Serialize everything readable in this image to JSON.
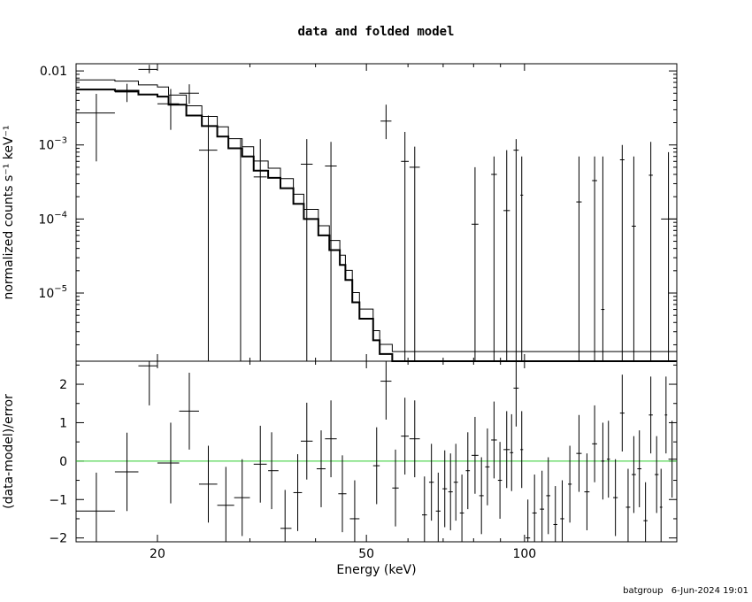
{
  "title": "data and folded model",
  "footer": {
    "user": "batgroup",
    "timestamp": "6-Jun-2024 19:01"
  },
  "chart_data": [
    {
      "type": "scatter",
      "panel": "top",
      "xscale": "log",
      "yscale": "log",
      "xlim": [
        14,
        195
      ],
      "ylim": [
        1.2e-06,
        0.0125
      ],
      "ylabel": "normalized counts s⁻¹ keV⁻¹",
      "y_ticks": [
        {
          "value": 0.01,
          "label": "0.01"
        },
        {
          "value": 0.001,
          "base": "10",
          "exp": "−3"
        },
        {
          "value": 0.0001,
          "base": "10",
          "exp": "−4"
        },
        {
          "value": 1e-05,
          "base": "10",
          "exp": "−5"
        }
      ],
      "data_points": [
        {
          "x": 15.3,
          "x_lo": 14.0,
          "x_hi": 16.6,
          "y": 0.0027,
          "y_lo": 0.0006,
          "y_hi": 0.0049
        },
        {
          "x": 17.5,
          "x_lo": 16.6,
          "x_hi": 18.4,
          "y": 0.0052,
          "y_lo": 0.0038,
          "y_hi": 0.0067
        },
        {
          "x": 19.3,
          "x_lo": 18.4,
          "x_hi": 20.0,
          "y": 0.0105,
          "y_lo": 0.0093,
          "y_hi": 0.0121
        },
        {
          "x": 21.2,
          "x_lo": 20.0,
          "x_hi": 22.0,
          "y": 0.0036,
          "y_lo": 0.0016,
          "y_hi": 0.0057
        },
        {
          "x": 23.0,
          "x_lo": 22.0,
          "x_hi": 24.0,
          "y": 0.005,
          "y_lo": 0.0036,
          "y_hi": 0.0066
        },
        {
          "x": 25.0,
          "x_lo": 24.0,
          "x_hi": 26.0,
          "y": 0.00085,
          "y_lo": 1.2e-06,
          "y_hi": 0.0025
        },
        {
          "x": 28.8,
          "x_lo": 28.0,
          "x_hi": 29.7,
          "y": 1.2e-06,
          "y_lo": 1.2e-06,
          "y_hi": 0.0012
        },
        {
          "x": 31.4,
          "x_lo": 30.5,
          "x_hi": 32.3,
          "y": 0.00037,
          "y_lo": 1.2e-06,
          "y_hi": 0.0012
        },
        {
          "x": 38.5,
          "x_lo": 37.5,
          "x_hi": 39.5,
          "y": 0.00055,
          "y_lo": 1.2e-06,
          "y_hi": 0.0012
        },
        {
          "x": 42.8,
          "x_lo": 41.7,
          "x_hi": 43.9,
          "y": 0.00052,
          "y_lo": 1.2e-06,
          "y_hi": 0.0011
        },
        {
          "x": 54.5,
          "x_lo": 53.2,
          "x_hi": 55.8,
          "y": 0.0021,
          "y_lo": 0.0012,
          "y_hi": 0.0035
        },
        {
          "x": 59.2,
          "x_lo": 58.2,
          "x_hi": 60.2,
          "y": 0.0006,
          "y_lo": 1.2e-06,
          "y_hi": 0.0015
        },
        {
          "x": 61.8,
          "x_lo": 60.4,
          "x_hi": 63.2,
          "y": 0.0005,
          "y_lo": 1.2e-06,
          "y_hi": 0.00095
        },
        {
          "x": 80.5,
          "x_lo": 79.3,
          "x_hi": 81.7,
          "y": 8.5e-05,
          "y_lo": 1.2e-06,
          "y_hi": 0.0005
        },
        {
          "x": 87.5,
          "x_lo": 86.4,
          "x_hi": 88.6,
          "y": 0.0004,
          "y_lo": 1.2e-06,
          "y_hi": 0.0007
        },
        {
          "x": 92.5,
          "x_lo": 91.2,
          "x_hi": 93.8,
          "y": 0.00013,
          "y_lo": 1.2e-06,
          "y_hi": 0.00085
        },
        {
          "x": 96.4,
          "x_lo": 95.3,
          "x_hi": 97.5,
          "y": 0.00085,
          "y_lo": 1.2e-06,
          "y_hi": 0.0012
        },
        {
          "x": 98.8,
          "x_lo": 98.2,
          "x_hi": 99.4,
          "y": 0.00021,
          "y_lo": 1.2e-06,
          "y_hi": 0.0007
        },
        {
          "x": 127.0,
          "x_lo": 125.5,
          "x_hi": 128.5,
          "y": 0.00017,
          "y_lo": 1.2e-06,
          "y_hi": 0.0007
        },
        {
          "x": 136.0,
          "x_lo": 134.5,
          "x_hi": 137.5,
          "y": 0.00033,
          "y_lo": 1.2e-06,
          "y_hi": 0.0007
        },
        {
          "x": 141.0,
          "x_lo": 140.0,
          "x_hi": 142.0,
          "y": 6e-06,
          "y_lo": 1.2e-06,
          "y_hi": 0.0007
        },
        {
          "x": 153.5,
          "x_lo": 152.0,
          "x_hi": 155.0,
          "y": 0.00063,
          "y_lo": 1.2e-06,
          "y_hi": 0.001
        },
        {
          "x": 161.5,
          "x_lo": 160.0,
          "x_hi": 163.0,
          "y": 8e-05,
          "y_lo": 1.2e-06,
          "y_hi": 0.0007
        },
        {
          "x": 174.0,
          "x_lo": 172.5,
          "x_hi": 175.5,
          "y": 0.00039,
          "y_lo": 1.2e-06,
          "y_hi": 0.0011
        },
        {
          "x": 188.0,
          "x_lo": 182.0,
          "x_hi": 195.0,
          "y": 0.0001,
          "y_lo": 1.2e-06,
          "y_hi": 0.0008
        }
      ],
      "model_step": [
        {
          "x0": 14.0,
          "x1": 16.6,
          "y": 0.0056
        },
        {
          "x0": 16.6,
          "x1": 18.4,
          "y": 0.0054
        },
        {
          "x0": 18.4,
          "x1": 20.0,
          "y": 0.0048
        },
        {
          "x0": 20.0,
          "x1": 21.0,
          "y": 0.0045
        },
        {
          "x0": 21.0,
          "x1": 22.7,
          "y": 0.0035
        },
        {
          "x0": 22.7,
          "x1": 24.3,
          "y": 0.0025
        },
        {
          "x0": 24.3,
          "x1": 26.0,
          "y": 0.0018
        },
        {
          "x0": 26.0,
          "x1": 27.3,
          "y": 0.0013
        },
        {
          "x0": 27.3,
          "x1": 29.0,
          "y": 0.0009
        },
        {
          "x0": 29.0,
          "x1": 30.5,
          "y": 0.0007
        },
        {
          "x0": 30.5,
          "x1": 32.5,
          "y": 0.00045
        },
        {
          "x0": 32.5,
          "x1": 34.3,
          "y": 0.00036
        },
        {
          "x0": 34.3,
          "x1": 36.3,
          "y": 0.00026
        },
        {
          "x0": 36.3,
          "x1": 38.0,
          "y": 0.00016
        },
        {
          "x0": 38.0,
          "x1": 40.5,
          "y": 0.0001
        },
        {
          "x0": 40.5,
          "x1": 42.5,
          "y": 6e-05
        },
        {
          "x0": 42.5,
          "x1": 44.5,
          "y": 3.8e-05
        },
        {
          "x0": 44.5,
          "x1": 45.6,
          "y": 2.4e-05
        },
        {
          "x0": 45.6,
          "x1": 47.0,
          "y": 1.5e-05
        },
        {
          "x0": 47.0,
          "x1": 48.5,
          "y": 7.5e-06
        },
        {
          "x0": 48.5,
          "x1": 51.5,
          "y": 4.5e-06
        },
        {
          "x0": 51.5,
          "x1": 53.0,
          "y": 2.3e-06
        },
        {
          "x0": 53.0,
          "x1": 56.0,
          "y": 1.5e-06
        },
        {
          "x0": 56.0,
          "x1": 195.0,
          "y": 1.2e-06
        }
      ]
    },
    {
      "type": "scatter",
      "panel": "bottom",
      "xscale": "log",
      "xlim": [
        14,
        195
      ],
      "ylim": [
        -2.1,
        2.6
      ],
      "xlabel": "Energy (keV)",
      "ylabel": "(data-model)/error",
      "x_ticks": [
        {
          "value": 20,
          "label": "20"
        },
        {
          "value": 50,
          "label": "50"
        },
        {
          "value": 100,
          "label": "100"
        }
      ],
      "y_ticks": [
        {
          "value": 2,
          "label": "2"
        },
        {
          "value": 1,
          "label": "1"
        },
        {
          "value": 0,
          "label": "0"
        },
        {
          "value": -1,
          "label": "−1"
        },
        {
          "value": -2,
          "label": "−2"
        }
      ],
      "reference_line": {
        "y": 0,
        "color": "#2ecc2e"
      },
      "residuals": [
        {
          "x": 15.3,
          "x_lo": 14.0,
          "x_hi": 16.6,
          "y": -1.3,
          "y_lo": -2.3,
          "y_hi": -0.3
        },
        {
          "x": 17.5,
          "x_lo": 16.6,
          "x_hi": 18.4,
          "y": -0.28,
          "y_lo": -1.3,
          "y_hi": 0.74
        },
        {
          "x": 19.3,
          "x_lo": 18.4,
          "x_hi": 20.0,
          "y": 2.48,
          "y_lo": 1.45,
          "y_hi": 3.5
        },
        {
          "x": 21.2,
          "x_lo": 20.0,
          "x_hi": 22.0,
          "y": -0.05,
          "y_lo": -1.1,
          "y_hi": 1.0
        },
        {
          "x": 23.0,
          "x_lo": 22.0,
          "x_hi": 24.0,
          "y": 1.3,
          "y_lo": 0.3,
          "y_hi": 2.3
        },
        {
          "x": 25.0,
          "x_lo": 24.0,
          "x_hi": 26.0,
          "y": -0.6,
          "y_lo": -1.6,
          "y_hi": 0.4
        },
        {
          "x": 27.0,
          "x_lo": 26.0,
          "x_hi": 28.0,
          "y": -1.15,
          "y_lo": -2.15,
          "y_hi": -0.15
        },
        {
          "x": 29.0,
          "x_lo": 28.0,
          "x_hi": 30.0,
          "y": -0.95,
          "y_lo": -1.95,
          "y_hi": 0.05
        },
        {
          "x": 31.4,
          "x_lo": 30.5,
          "x_hi": 32.3,
          "y": -0.08,
          "y_lo": -1.08,
          "y_hi": 0.92
        },
        {
          "x": 33.0,
          "x_lo": 32.5,
          "x_hi": 34.0,
          "y": -0.25,
          "y_lo": -1.25,
          "y_hi": 0.75
        },
        {
          "x": 35.0,
          "x_lo": 34.3,
          "x_hi": 36.0,
          "y": -1.75,
          "y_lo": -2.2,
          "y_hi": -0.75
        },
        {
          "x": 37.0,
          "x_lo": 36.3,
          "x_hi": 37.7,
          "y": -0.82,
          "y_lo": -1.82,
          "y_hi": 0.18
        },
        {
          "x": 38.5,
          "x_lo": 37.5,
          "x_hi": 39.5,
          "y": 0.52,
          "y_lo": -0.48,
          "y_hi": 1.52
        },
        {
          "x": 41.0,
          "x_lo": 40.2,
          "x_hi": 41.8,
          "y": -0.2,
          "y_lo": -1.2,
          "y_hi": 0.8
        },
        {
          "x": 42.8,
          "x_lo": 41.7,
          "x_hi": 43.9,
          "y": 0.58,
          "y_lo": -0.42,
          "y_hi": 1.58
        },
        {
          "x": 45.0,
          "x_lo": 44.2,
          "x_hi": 45.8,
          "y": -0.85,
          "y_lo": -1.85,
          "y_hi": 0.15
        },
        {
          "x": 47.5,
          "x_lo": 46.5,
          "x_hi": 48.5,
          "y": -1.5,
          "y_lo": -2.2,
          "y_hi": -0.5
        },
        {
          "x": 52.3,
          "x_lo": 51.5,
          "x_hi": 53.0,
          "y": -0.12,
          "y_lo": -1.12,
          "y_hi": 0.88
        },
        {
          "x": 54.5,
          "x_lo": 53.2,
          "x_hi": 55.8,
          "y": 2.08,
          "y_lo": 1.08,
          "y_hi": 3.08
        },
        {
          "x": 56.8,
          "x_lo": 56.0,
          "x_hi": 57.6,
          "y": -0.7,
          "y_lo": -1.7,
          "y_hi": 0.3
        },
        {
          "x": 59.2,
          "x_lo": 58.2,
          "x_hi": 60.2,
          "y": 0.65,
          "y_lo": -0.35,
          "y_hi": 1.65
        },
        {
          "x": 61.8,
          "x_lo": 60.4,
          "x_hi": 63.2,
          "y": 0.58,
          "y_lo": -0.42,
          "y_hi": 1.58
        },
        {
          "x": 64.5,
          "x_lo": 63.8,
          "x_hi": 65.2,
          "y": -1.4,
          "y_lo": -2.2,
          "y_hi": -0.4
        },
        {
          "x": 66.5,
          "x_lo": 65.8,
          "x_hi": 67.2,
          "y": -0.55,
          "y_lo": -1.55,
          "y_hi": 0.45
        },
        {
          "x": 68.5,
          "x_lo": 67.8,
          "x_hi": 69.2,
          "y": -1.3,
          "y_lo": -2.2,
          "y_hi": -0.3
        },
        {
          "x": 70.5,
          "x_lo": 69.8,
          "x_hi": 71.2,
          "y": -0.72,
          "y_lo": -1.72,
          "y_hi": 0.28
        },
        {
          "x": 72.3,
          "x_lo": 71.6,
          "x_hi": 73.0,
          "y": -0.8,
          "y_lo": -1.8,
          "y_hi": 0.2
        },
        {
          "x": 74.0,
          "x_lo": 73.3,
          "x_hi": 74.7,
          "y": -0.55,
          "y_lo": -1.55,
          "y_hi": 0.45
        },
        {
          "x": 76.0,
          "x_lo": 75.3,
          "x_hi": 76.7,
          "y": -1.35,
          "y_lo": -2.2,
          "y_hi": -0.35
        },
        {
          "x": 78.0,
          "x_lo": 77.3,
          "x_hi": 78.7,
          "y": -0.25,
          "y_lo": -1.25,
          "y_hi": 0.75
        },
        {
          "x": 80.5,
          "x_lo": 79.3,
          "x_hi": 81.7,
          "y": 0.15,
          "y_lo": -0.85,
          "y_hi": 1.15
        },
        {
          "x": 82.8,
          "x_lo": 82.0,
          "x_hi": 83.6,
          "y": -0.9,
          "y_lo": -1.9,
          "y_hi": 0.1
        },
        {
          "x": 85.0,
          "x_lo": 84.2,
          "x_hi": 85.8,
          "y": -0.15,
          "y_lo": -1.15,
          "y_hi": 0.85
        },
        {
          "x": 87.5,
          "x_lo": 86.4,
          "x_hi": 88.6,
          "y": 0.55,
          "y_lo": -0.45,
          "y_hi": 1.55
        },
        {
          "x": 89.8,
          "x_lo": 89.0,
          "x_hi": 90.6,
          "y": -0.5,
          "y_lo": -1.5,
          "y_hi": 0.5
        },
        {
          "x": 92.5,
          "x_lo": 91.2,
          "x_hi": 93.8,
          "y": 0.3,
          "y_lo": -0.7,
          "y_hi": 1.3
        },
        {
          "x": 94.5,
          "x_lo": 93.8,
          "x_hi": 95.2,
          "y": 0.22,
          "y_lo": -0.78,
          "y_hi": 1.22
        },
        {
          "x": 96.4,
          "x_lo": 95.3,
          "x_hi": 97.5,
          "y": 1.9,
          "y_lo": 0.9,
          "y_hi": 2.9
        },
        {
          "x": 98.8,
          "x_lo": 98.2,
          "x_hi": 99.4,
          "y": 0.3,
          "y_lo": -0.7,
          "y_hi": 1.3
        },
        {
          "x": 101.5,
          "x_lo": 100.5,
          "x_hi": 102.5,
          "y": -2.0,
          "y_lo": -2.2,
          "y_hi": -1.0
        },
        {
          "x": 104.5,
          "x_lo": 103.5,
          "x_hi": 105.5,
          "y": -1.35,
          "y_lo": -2.2,
          "y_hi": -0.35
        },
        {
          "x": 108.0,
          "x_lo": 107.0,
          "x_hi": 109.0,
          "y": -1.25,
          "y_lo": -2.2,
          "y_hi": -0.25
        },
        {
          "x": 111.0,
          "x_lo": 110.0,
          "x_hi": 112.0,
          "y": -0.9,
          "y_lo": -1.9,
          "y_hi": 0.1
        },
        {
          "x": 114.5,
          "x_lo": 113.5,
          "x_hi": 115.5,
          "y": -1.65,
          "y_lo": -2.2,
          "y_hi": -0.65
        },
        {
          "x": 118.0,
          "x_lo": 117.0,
          "x_hi": 119.0,
          "y": -1.5,
          "y_lo": -2.2,
          "y_hi": -0.5
        },
        {
          "x": 122.0,
          "x_lo": 121.0,
          "x_hi": 123.0,
          "y": -0.6,
          "y_lo": -1.6,
          "y_hi": 0.4
        },
        {
          "x": 127.0,
          "x_lo": 125.5,
          "x_hi": 128.5,
          "y": 0.2,
          "y_lo": -0.8,
          "y_hi": 1.2
        },
        {
          "x": 131.5,
          "x_lo": 130.0,
          "x_hi": 133.0,
          "y": -0.8,
          "y_lo": -1.8,
          "y_hi": 0.2
        },
        {
          "x": 136.0,
          "x_lo": 134.5,
          "x_hi": 137.5,
          "y": 0.45,
          "y_lo": -0.55,
          "y_hi": 1.45
        },
        {
          "x": 141.0,
          "x_lo": 140.0,
          "x_hi": 142.0,
          "y": 0.0,
          "y_lo": -1.0,
          "y_hi": 1.0
        },
        {
          "x": 144.5,
          "x_lo": 143.5,
          "x_hi": 145.5,
          "y": 0.05,
          "y_lo": -0.95,
          "y_hi": 1.05
        },
        {
          "x": 149.0,
          "x_lo": 147.5,
          "x_hi": 150.5,
          "y": -0.95,
          "y_lo": -1.95,
          "y_hi": 0.05
        },
        {
          "x": 153.5,
          "x_lo": 152.0,
          "x_hi": 155.0,
          "y": 1.25,
          "y_lo": 0.25,
          "y_hi": 2.25
        },
        {
          "x": 157.5,
          "x_lo": 156.0,
          "x_hi": 159.0,
          "y": -1.2,
          "y_lo": -2.2,
          "y_hi": -0.2
        },
        {
          "x": 161.5,
          "x_lo": 160.0,
          "x_hi": 163.0,
          "y": -0.35,
          "y_lo": -1.35,
          "y_hi": 0.65
        },
        {
          "x": 165.5,
          "x_lo": 164.0,
          "x_hi": 167.0,
          "y": -0.2,
          "y_lo": -1.2,
          "y_hi": 0.8
        },
        {
          "x": 170.0,
          "x_lo": 168.5,
          "x_hi": 171.5,
          "y": -1.55,
          "y_lo": -2.2,
          "y_hi": -0.55
        },
        {
          "x": 174.0,
          "x_lo": 172.5,
          "x_hi": 175.5,
          "y": 1.2,
          "y_lo": 0.2,
          "y_hi": 2.2
        },
        {
          "x": 178.5,
          "x_lo": 177.0,
          "x_hi": 180.0,
          "y": -0.35,
          "y_lo": -1.35,
          "y_hi": 0.65
        },
        {
          "x": 182.0,
          "x_lo": 181.0,
          "x_hi": 183.0,
          "y": -1.2,
          "y_lo": -2.2,
          "y_hi": -0.2
        },
        {
          "x": 186.0,
          "x_lo": 185.0,
          "x_hi": 187.0,
          "y": 1.2,
          "y_lo": 0.2,
          "y_hi": 2.2
        },
        {
          "x": 191.0,
          "x_lo": 188.0,
          "x_hi": 195.0,
          "y": 0.05,
          "y_lo": -0.95,
          "y_hi": 1.05
        }
      ]
    }
  ]
}
